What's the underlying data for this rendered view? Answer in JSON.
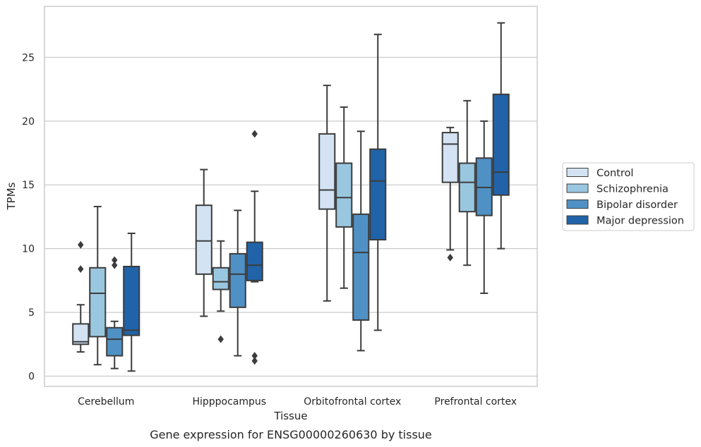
{
  "caption": "Gene expression for ENSG00000260630 by tissue",
  "chart_data": {
    "type": "box",
    "title": "",
    "xlabel": "Tissue",
    "ylabel": "TPMs",
    "ylim": [
      -0.8,
      29
    ],
    "yticks": [
      0,
      5,
      10,
      15,
      20,
      25
    ],
    "grid": "horizontal",
    "legend_position": "right",
    "categories": [
      "Cerebellum",
      "Hipppocampus",
      "Orbitofrontal cortex",
      "Prefrontal cortex"
    ],
    "series": [
      {
        "name": "Control",
        "color": "#d3e3f3",
        "boxes": [
          {
            "whisker_low": 1.9,
            "q1": 2.5,
            "median": 2.7,
            "q3": 4.1,
            "whisker_high": 5.6,
            "outliers": [
              8.4,
              10.3
            ]
          },
          {
            "whisker_low": 4.7,
            "q1": 8.0,
            "median": 10.6,
            "q3": 13.4,
            "whisker_high": 16.2,
            "outliers": []
          },
          {
            "whisker_low": 5.9,
            "q1": 13.1,
            "median": 14.6,
            "q3": 19.0,
            "whisker_high": 22.8,
            "outliers": []
          },
          {
            "whisker_low": 9.9,
            "q1": 15.2,
            "median": 18.2,
            "q3": 19.1,
            "whisker_high": 19.5,
            "outliers": [
              9.3
            ]
          }
        ]
      },
      {
        "name": "Schizophrenia",
        "color": "#9ac7e0",
        "boxes": [
          {
            "whisker_low": 0.9,
            "q1": 3.1,
            "median": 6.5,
            "q3": 8.5,
            "whisker_high": 13.3,
            "outliers": []
          },
          {
            "whisker_low": 5.1,
            "q1": 6.8,
            "median": 7.4,
            "q3": 8.5,
            "whisker_high": 10.6,
            "outliers": [
              2.9
            ]
          },
          {
            "whisker_low": 6.9,
            "q1": 11.7,
            "median": 14.0,
            "q3": 16.7,
            "whisker_high": 21.1,
            "outliers": []
          },
          {
            "whisker_low": 8.7,
            "q1": 12.9,
            "median": 15.2,
            "q3": 16.7,
            "whisker_high": 21.6,
            "outliers": []
          }
        ]
      },
      {
        "name": "Bipolar disorder",
        "color": "#4f91c4",
        "boxes": [
          {
            "whisker_low": 0.6,
            "q1": 1.6,
            "median": 2.9,
            "q3": 3.8,
            "whisker_high": 4.3,
            "outliers": [
              8.7,
              9.1
            ]
          },
          {
            "whisker_low": 1.6,
            "q1": 5.4,
            "median": 8.0,
            "q3": 9.6,
            "whisker_high": 13.0,
            "outliers": []
          },
          {
            "whisker_low": 2.0,
            "q1": 4.4,
            "median": 9.7,
            "q3": 12.7,
            "whisker_high": 19.2,
            "outliers": []
          },
          {
            "whisker_low": 6.5,
            "q1": 12.6,
            "median": 14.8,
            "q3": 17.1,
            "whisker_high": 20.0,
            "outliers": []
          }
        ]
      },
      {
        "name": "Major depression",
        "color": "#2163a8",
        "boxes": [
          {
            "whisker_low": 0.4,
            "q1": 3.2,
            "median": 3.6,
            "q3": 8.6,
            "whisker_high": 11.2,
            "outliers": []
          },
          {
            "whisker_low": 7.4,
            "q1": 7.5,
            "median": 8.7,
            "q3": 10.5,
            "whisker_high": 14.5,
            "outliers": [
              1.2,
              1.6,
              19.0
            ]
          },
          {
            "whisker_low": 3.6,
            "q1": 10.7,
            "median": 15.3,
            "q3": 17.8,
            "whisker_high": 26.8,
            "outliers": []
          },
          {
            "whisker_low": 10.0,
            "q1": 14.2,
            "median": 16.0,
            "q3": 22.1,
            "whisker_high": 27.7,
            "outliers": []
          }
        ]
      }
    ]
  }
}
